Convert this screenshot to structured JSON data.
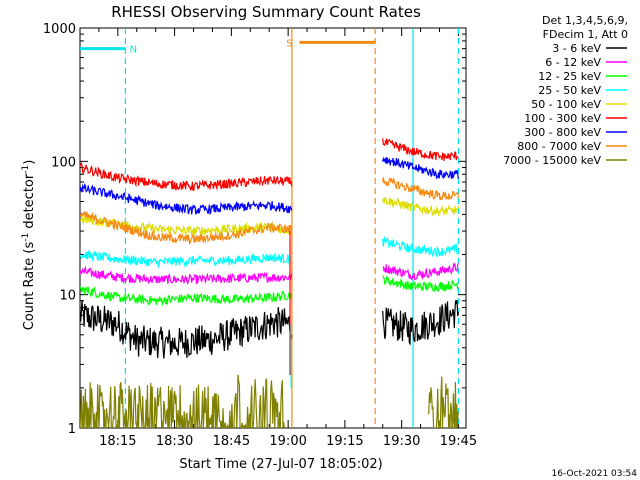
{
  "chart_data": {
    "type": "line",
    "title": "RHESSI Observing Summary Count Rates",
    "xlabel": "Start Time (27-Jul-07 18:05:02)",
    "ylabel_main": "Count Rate (s",
    "ylabel_sup1": "-1",
    "ylabel_mid": " detector",
    "ylabel_sup2": "-1",
    "ylabel_end": ")",
    "x_ticks": [
      "18:15",
      "18:30",
      "18:45",
      "19:00",
      "19:15",
      "19:30",
      "19:45"
    ],
    "x_tick_minutes": [
      10,
      25,
      40,
      55,
      70,
      85,
      100
    ],
    "xlim_minutes": [
      0,
      102
    ],
    "y_scale": "log",
    "ylim": [
      1,
      1000
    ],
    "y_ticks": [
      "1",
      "10",
      "100",
      "1000"
    ],
    "y_tick_values": [
      1,
      10,
      100,
      1000
    ],
    "legend_header": [
      "Det 1,3,4,5,6,9,",
      "FDecim 1, Att 0"
    ],
    "legend_position": "top-right outside plot",
    "timestamp": "16-Oct-2021 03:54",
    "annotations": [
      {
        "label": "N",
        "color": "#00e5e5",
        "x_start": 0,
        "x_end": 12,
        "y": 700
      },
      {
        "label": "S",
        "color": "#f58a14",
        "x_start": 58,
        "x_end": 78,
        "y": 780
      }
    ],
    "markers": [
      {
        "x": 12,
        "style": "dashed",
        "color": "#00e5e5"
      },
      {
        "x": 56,
        "style": "solid",
        "color": "#f58a14"
      },
      {
        "x": 78,
        "style": "dashed",
        "color": "#f58a14"
      },
      {
        "x": 88,
        "style": "solid",
        "color": "#00e5e5"
      },
      {
        "x": 100,
        "style": "dashed",
        "color": "#00e5e5"
      }
    ],
    "series": [
      {
        "name": "3 - 6 keV",
        "color": "#000000",
        "seg1": [
          [
            0,
            7
          ],
          [
            5,
            6.5
          ],
          [
            10,
            6
          ],
          [
            15,
            4.5
          ],
          [
            25,
            4.3
          ],
          [
            35,
            4.6
          ],
          [
            45,
            5.5
          ],
          [
            51,
            6.2
          ],
          [
            56,
            6
          ]
        ],
        "seg2": [
          [
            80,
            6.2
          ],
          [
            88,
            5.5
          ],
          [
            95,
            6.5
          ],
          [
            100,
            7.5
          ]
        ]
      },
      {
        "name": "6 - 12 keV",
        "color": "#ff00ff",
        "seg1": [
          [
            0,
            15
          ],
          [
            10,
            13.5
          ],
          [
            20,
            13
          ],
          [
            30,
            13
          ],
          [
            40,
            13.2
          ],
          [
            50,
            13.5
          ],
          [
            56,
            13.5
          ]
        ],
        "seg2": [
          [
            80,
            16
          ],
          [
            88,
            14
          ],
          [
            95,
            15
          ],
          [
            100,
            16
          ]
        ]
      },
      {
        "name": "12 - 25 keV",
        "color": "#00ff00",
        "seg1": [
          [
            0,
            11
          ],
          [
            10,
            9.5
          ],
          [
            20,
            9
          ],
          [
            30,
            9.5
          ],
          [
            40,
            9.2
          ],
          [
            50,
            9.5
          ],
          [
            56,
            10
          ]
        ],
        "seg2": [
          [
            80,
            13
          ],
          [
            88,
            11.5
          ],
          [
            95,
            11.5
          ],
          [
            100,
            12
          ]
        ]
      },
      {
        "name": "25 - 50 keV",
        "color": "#00ffff",
        "seg1": [
          [
            0,
            20
          ],
          [
            10,
            18.5
          ],
          [
            20,
            17.5
          ],
          [
            30,
            18
          ],
          [
            40,
            18
          ],
          [
            50,
            19
          ],
          [
            56,
            18.5
          ]
        ],
        "seg2": [
          [
            80,
            25
          ],
          [
            88,
            22
          ],
          [
            95,
            21
          ],
          [
            100,
            22
          ]
        ]
      },
      {
        "name": "50 - 100 keV",
        "color": "#dddd00",
        "seg1": [
          [
            0,
            37
          ],
          [
            10,
            34
          ],
          [
            20,
            31
          ],
          [
            30,
            30
          ],
          [
            40,
            31
          ],
          [
            50,
            32
          ],
          [
            56,
            30
          ]
        ],
        "seg2": [
          [
            80,
            52
          ],
          [
            88,
            45
          ],
          [
            95,
            42
          ],
          [
            100,
            43
          ]
        ]
      },
      {
        "name": "100 - 300 keV",
        "color": "#ff0000",
        "seg1": [
          [
            0,
            90
          ],
          [
            10,
            75
          ],
          [
            20,
            68
          ],
          [
            30,
            65
          ],
          [
            40,
            68
          ],
          [
            50,
            72
          ],
          [
            56,
            70
          ]
        ],
        "seg2": [
          [
            80,
            140
          ],
          [
            88,
            118
          ],
          [
            95,
            108
          ],
          [
            100,
            110
          ]
        ]
      },
      {
        "name": "300 - 800 keV",
        "color": "#0000ff",
        "seg1": [
          [
            0,
            63
          ],
          [
            10,
            55
          ],
          [
            20,
            47
          ],
          [
            30,
            43
          ],
          [
            40,
            45
          ],
          [
            50,
            47
          ],
          [
            56,
            44
          ]
        ],
        "seg2": [
          [
            80,
            105
          ],
          [
            88,
            90
          ],
          [
            95,
            80
          ],
          [
            100,
            80
          ]
        ]
      },
      {
        "name": "800 - 7000 keV",
        "color": "#f58a14",
        "seg1": [
          [
            0,
            40
          ],
          [
            10,
            33
          ],
          [
            20,
            27
          ],
          [
            30,
            26
          ],
          [
            40,
            28
          ],
          [
            50,
            32
          ],
          [
            56,
            31
          ]
        ],
        "seg2": [
          [
            80,
            72
          ],
          [
            88,
            62
          ],
          [
            95,
            55
          ],
          [
            100,
            55
          ]
        ]
      },
      {
        "name": "7000 - 15000 keV",
        "color": "#808000",
        "seg1": [
          [
            0,
            1.6
          ],
          [
            2,
            1.3
          ],
          [
            4,
            1.8
          ],
          [
            6,
            1.2
          ],
          [
            8,
            1.5
          ],
          [
            40,
            1.4
          ],
          [
            42,
            1.9
          ],
          [
            44,
            1.2
          ],
          [
            46,
            1.6
          ],
          [
            48,
            1.3
          ],
          [
            50,
            1.8
          ],
          [
            52,
            1.4
          ],
          [
            54,
            1.7
          ]
        ],
        "seg2": [
          [
            92,
            1.5
          ],
          [
            94,
            1.2
          ],
          [
            96,
            1.8
          ],
          [
            98,
            1.3
          ],
          [
            100,
            1.6
          ]
        ]
      }
    ]
  }
}
